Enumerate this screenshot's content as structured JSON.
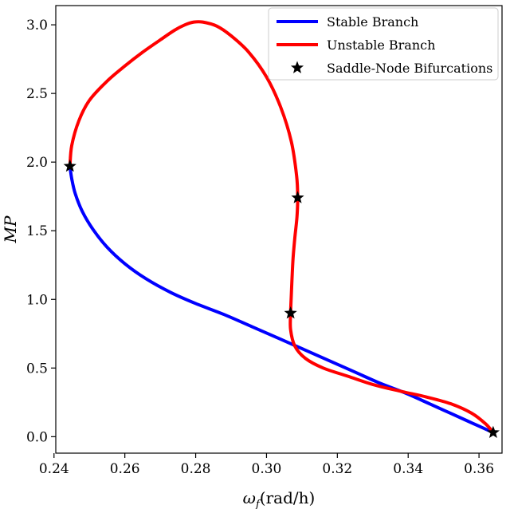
{
  "chart_data": {
    "type": "line",
    "title": "",
    "xlabel": {
      "symbol": "ω",
      "subscript": "f",
      "unit": "(rad/h)"
    },
    "ylabel": "MP",
    "xlim": [
      0.2405,
      0.3665
    ],
    "ylim": [
      -0.12,
      3.14
    ],
    "x_ticks": [
      "0.24",
      "0.26",
      "0.28",
      "0.30",
      "0.32",
      "0.34",
      "0.36"
    ],
    "y_ticks": [
      "0.0",
      "0.5",
      "1.0",
      "1.5",
      "2.0",
      "2.5",
      "3.0"
    ],
    "grid": false,
    "legend_position": "top-right",
    "series": [
      {
        "name": "Stable Branch",
        "color": "#0000ff",
        "x": [
          0.2445,
          0.245,
          0.246,
          0.248,
          0.251,
          0.255,
          0.26,
          0.266,
          0.273,
          0.28,
          0.288,
          0.296,
          0.304,
          0.311,
          0.318,
          0.325,
          0.332,
          0.339,
          0.346,
          0.352,
          0.358,
          0.364
        ],
        "y": [
          1.97,
          1.88,
          1.77,
          1.64,
          1.51,
          1.38,
          1.26,
          1.15,
          1.05,
          0.97,
          0.89,
          0.8,
          0.71,
          0.63,
          0.55,
          0.47,
          0.39,
          0.32,
          0.24,
          0.17,
          0.1,
          0.03
        ]
      },
      {
        "name": "Unstable Branch",
        "color": "#ff0000",
        "x": [
          0.2445,
          0.245,
          0.247,
          0.25,
          0.255,
          0.26,
          0.265,
          0.27,
          0.274,
          0.277,
          0.2795,
          0.282,
          0.286,
          0.29,
          0.295,
          0.3,
          0.304,
          0.307,
          0.3085,
          0.3088,
          0.3086,
          0.308,
          0.3075,
          0.3072,
          0.307,
          0.3068,
          0.3068,
          0.308,
          0.311,
          0.316,
          0.323,
          0.33,
          0.338,
          0.345,
          0.352,
          0.358,
          0.362,
          0.364
        ],
        "y": [
          1.97,
          2.12,
          2.3,
          2.45,
          2.59,
          2.7,
          2.8,
          2.89,
          2.96,
          3.0,
          3.02,
          3.02,
          2.99,
          2.92,
          2.8,
          2.62,
          2.4,
          2.15,
          1.9,
          1.74,
          1.6,
          1.45,
          1.3,
          1.15,
          1.03,
          0.9,
          0.78,
          0.66,
          0.57,
          0.5,
          0.44,
          0.38,
          0.33,
          0.29,
          0.24,
          0.17,
          0.09,
          0.03
        ]
      }
    ],
    "markers": {
      "name": "Saddle-Node Bifurcations",
      "symbol": "star",
      "color": "#000000",
      "points": [
        {
          "x": 0.2445,
          "y": 1.97
        },
        {
          "x": 0.3088,
          "y": 1.74
        },
        {
          "x": 0.3068,
          "y": 0.9
        },
        {
          "x": 0.364,
          "y": 0.03
        }
      ]
    }
  }
}
